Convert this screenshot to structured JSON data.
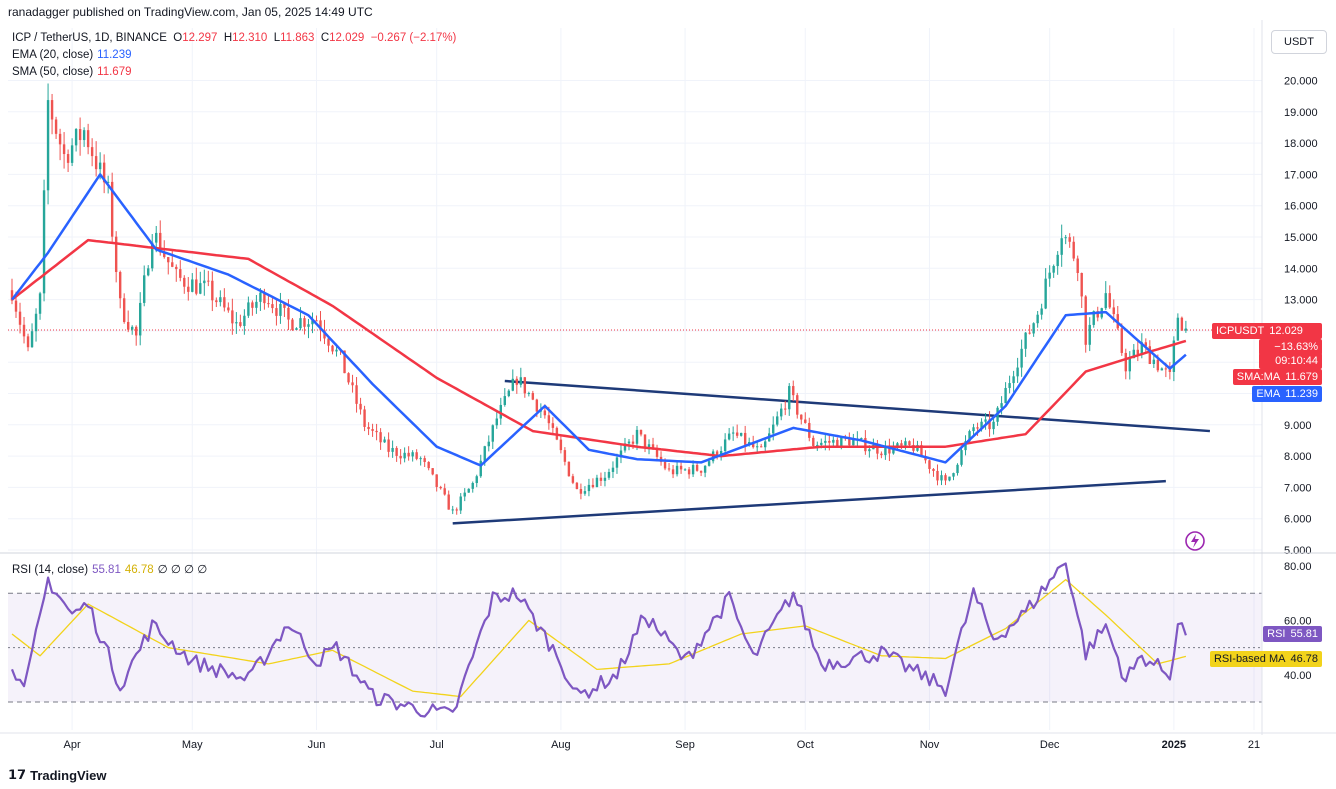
{
  "header": {
    "published": "ranadagger published on TradingView.com, Jan 05, 2025 14:49 UTC"
  },
  "legend": {
    "symbol": "ICP / TetherUS, 1D, BINANCE",
    "open_label": "O",
    "open": "12.297",
    "high_label": "H",
    "high": "12.310",
    "low_label": "L",
    "low": "11.863",
    "close_label": "C",
    "close": "12.029",
    "change": "−0.267 (−2.17%)",
    "ema_label": "EMA (20, close)",
    "ema_value": "11.239",
    "sma_label": "SMA (50, close)",
    "sma_value": "11.679",
    "rsi_label": "RSI (14, close)",
    "rsi_value": "55.81",
    "rsi_ma_value": "46.78",
    "rsi_extra": "∅ ∅ ∅ ∅"
  },
  "unit_button": "USDT",
  "price_tags": {
    "symbol": "ICPUSDT",
    "price": "12.029",
    "change_pct": "−13.63%",
    "countdown": "09:10:44",
    "sma_label": "SMA:MA",
    "sma": "11.679",
    "ema_label": "EMA",
    "ema": "11.239",
    "rsi_label": "RSI",
    "rsi": "55.81",
    "rsi_ma_label": "RSI-based MA",
    "rsi_ma": "46.78"
  },
  "footer": {
    "brand": "TradingView"
  },
  "colors": {
    "up": "#26a69a",
    "down": "#ef5350",
    "ema": "#2962ff",
    "sma": "#f23645",
    "trendline": "#1e3a78",
    "rsi": "#7e57c2",
    "rsi_ma": "#f2d31b",
    "rsi_band": "#7e57c2"
  },
  "chart_data": [
    {
      "type": "candlestick",
      "title": "ICP / TetherUS, 1D, BINANCE",
      "x_tick_labels": [
        "Apr",
        "May",
        "Jun",
        "Jul",
        "Aug",
        "Sep",
        "Oct",
        "Nov",
        "Dec",
        "2025",
        "21"
      ],
      "y_tick_labels": [
        "5.000",
        "6.000",
        "7.000",
        "8.000",
        "9.000",
        "10.000",
        "11.000",
        "12.000",
        "13.000",
        "14.000",
        "15.000",
        "16.000",
        "17.000",
        "18.000",
        "19.000",
        "20.000"
      ],
      "ylim": [
        5,
        21
      ],
      "grid": true,
      "close_key_points": [
        {
          "x": "2024-03-17",
          "y": 13.3
        },
        {
          "x": "2024-03-21",
          "y": 11.3
        },
        {
          "x": "2024-03-24",
          "y": 13.0
        },
        {
          "x": "2024-03-26",
          "y": 19.3
        },
        {
          "x": "2024-03-30",
          "y": 17.6
        },
        {
          "x": "2024-04-04",
          "y": 18.4
        },
        {
          "x": "2024-04-10",
          "y": 16.4
        },
        {
          "x": "2024-04-13",
          "y": 12.8
        },
        {
          "x": "2024-04-17",
          "y": 11.8
        },
        {
          "x": "2024-04-21",
          "y": 15.2
        },
        {
          "x": "2024-04-27",
          "y": 13.7
        },
        {
          "x": "2024-05-05",
          "y": 13.3
        },
        {
          "x": "2024-05-12",
          "y": 12.2
        },
        {
          "x": "2024-05-19",
          "y": 13.2
        },
        {
          "x": "2024-05-25",
          "y": 12.3
        },
        {
          "x": "2024-06-01",
          "y": 12.4
        },
        {
          "x": "2024-06-07",
          "y": 11.1
        },
        {
          "x": "2024-06-13",
          "y": 9.0
        },
        {
          "x": "2024-06-19",
          "y": 8.2
        },
        {
          "x": "2024-06-27",
          "y": 7.9
        },
        {
          "x": "2024-07-05",
          "y": 6.2
        },
        {
          "x": "2024-07-10",
          "y": 7.1
        },
        {
          "x": "2024-07-16",
          "y": 9.2
        },
        {
          "x": "2024-07-21",
          "y": 10.5
        },
        {
          "x": "2024-07-28",
          "y": 9.3
        },
        {
          "x": "2024-08-05",
          "y": 6.9
        },
        {
          "x": "2024-08-12",
          "y": 7.4
        },
        {
          "x": "2024-08-20",
          "y": 8.7
        },
        {
          "x": "2024-08-28",
          "y": 7.5
        },
        {
          "x": "2024-09-05",
          "y": 7.6
        },
        {
          "x": "2024-09-13",
          "y": 8.7
        },
        {
          "x": "2024-09-20",
          "y": 8.1
        },
        {
          "x": "2024-09-27",
          "y": 10.0
        },
        {
          "x": "2024-10-03",
          "y": 8.4
        },
        {
          "x": "2024-10-12",
          "y": 8.5
        },
        {
          "x": "2024-10-20",
          "y": 8.2
        },
        {
          "x": "2024-10-28",
          "y": 8.3
        },
        {
          "x": "2024-11-05",
          "y": 7.1
        },
        {
          "x": "2024-11-12",
          "y": 8.9
        },
        {
          "x": "2024-11-17",
          "y": 9.0
        },
        {
          "x": "2024-11-22",
          "y": 10.8
        },
        {
          "x": "2024-11-28",
          "y": 12.6
        },
        {
          "x": "2024-12-04",
          "y": 15.2
        },
        {
          "x": "2024-12-08",
          "y": 14.2
        },
        {
          "x": "2024-12-10",
          "y": 11.8
        },
        {
          "x": "2024-12-15",
          "y": 13.2
        },
        {
          "x": "2024-12-20",
          "y": 10.9
        },
        {
          "x": "2024-12-24",
          "y": 11.5
        },
        {
          "x": "2024-12-31",
          "y": 10.5
        },
        {
          "x": "2025-01-02",
          "y": 12.5
        },
        {
          "x": "2025-01-04",
          "y": 12.03
        }
      ],
      "ema_key_points": [
        {
          "x": "2024-03-17",
          "y": 13.0
        },
        {
          "x": "2024-03-26",
          "y": 14.5
        },
        {
          "x": "2024-04-08",
          "y": 17.0
        },
        {
          "x": "2024-04-22",
          "y": 14.6
        },
        {
          "x": "2024-05-10",
          "y": 13.8
        },
        {
          "x": "2024-05-30",
          "y": 12.5
        },
        {
          "x": "2024-06-15",
          "y": 10.3
        },
        {
          "x": "2024-07-01",
          "y": 8.3
        },
        {
          "x": "2024-07-12",
          "y": 7.7
        },
        {
          "x": "2024-07-28",
          "y": 9.6
        },
        {
          "x": "2024-08-08",
          "y": 8.2
        },
        {
          "x": "2024-08-20",
          "y": 7.9
        },
        {
          "x": "2024-09-05",
          "y": 7.8
        },
        {
          "x": "2024-09-28",
          "y": 8.9
        },
        {
          "x": "2024-10-15",
          "y": 8.5
        },
        {
          "x": "2024-11-05",
          "y": 7.8
        },
        {
          "x": "2024-11-20",
          "y": 9.6
        },
        {
          "x": "2024-12-05",
          "y": 12.5
        },
        {
          "x": "2024-12-15",
          "y": 12.6
        },
        {
          "x": "2024-12-31",
          "y": 10.8
        },
        {
          "x": "2025-01-04",
          "y": 11.239
        }
      ],
      "sma_key_points": [
        {
          "x": "2024-03-17",
          "y": 13.0
        },
        {
          "x": "2024-04-05",
          "y": 14.9
        },
        {
          "x": "2024-05-15",
          "y": 14.3
        },
        {
          "x": "2024-06-05",
          "y": 12.8
        },
        {
          "x": "2024-07-01",
          "y": 10.5
        },
        {
          "x": "2024-07-25",
          "y": 8.8
        },
        {
          "x": "2024-08-20",
          "y": 8.3
        },
        {
          "x": "2024-09-10",
          "y": 8.0
        },
        {
          "x": "2024-10-05",
          "y": 8.3
        },
        {
          "x": "2024-11-05",
          "y": 8.3
        },
        {
          "x": "2024-11-25",
          "y": 8.7
        },
        {
          "x": "2024-12-10",
          "y": 10.7
        },
        {
          "x": "2024-12-25",
          "y": 11.3
        },
        {
          "x": "2025-01-04",
          "y": 11.679
        }
      ],
      "trendlines": [
        {
          "name": "upper",
          "points": [
            {
              "x": "2024-07-18",
              "y": 10.4
            },
            {
              "x": "2025-01-10",
              "y": 8.8
            }
          ]
        },
        {
          "name": "lower",
          "points": [
            {
              "x": "2024-07-05",
              "y": 5.85
            },
            {
              "x": "2024-12-30",
              "y": 7.2
            }
          ]
        }
      ],
      "last_price": 12.029
    },
    {
      "type": "line",
      "title": "RSI (14, close)",
      "y_tick_labels": [
        "40.00",
        "60.00",
        "80.00"
      ],
      "ylim": [
        23,
        83
      ],
      "bands": [
        30,
        50,
        70
      ],
      "series": [
        {
          "name": "RSI",
          "key_points": [
            {
              "x": "2024-03-17",
              "y": 45
            },
            {
              "x": "2024-03-20",
              "y": 33
            },
            {
              "x": "2024-03-26",
              "y": 75
            },
            {
              "x": "2024-04-01",
              "y": 62
            },
            {
              "x": "2024-04-05",
              "y": 66
            },
            {
              "x": "2024-04-13",
              "y": 36
            },
            {
              "x": "2024-04-21",
              "y": 58
            },
            {
              "x": "2024-05-01",
              "y": 45
            },
            {
              "x": "2024-05-15",
              "y": 38
            },
            {
              "x": "2024-05-25",
              "y": 59
            },
            {
              "x": "2024-06-01",
              "y": 45
            },
            {
              "x": "2024-06-06",
              "y": 50
            },
            {
              "x": "2024-06-15",
              "y": 32
            },
            {
              "x": "2024-06-25",
              "y": 28
            },
            {
              "x": "2024-07-05",
              "y": 25
            },
            {
              "x": "2024-07-15",
              "y": 68
            },
            {
              "x": "2024-07-21",
              "y": 70
            },
            {
              "x": "2024-08-01",
              "y": 45
            },
            {
              "x": "2024-08-05",
              "y": 32
            },
            {
              "x": "2024-08-15",
              "y": 40
            },
            {
              "x": "2024-08-22",
              "y": 62
            },
            {
              "x": "2024-09-01",
              "y": 45
            },
            {
              "x": "2024-09-12",
              "y": 68
            },
            {
              "x": "2024-09-18",
              "y": 46
            },
            {
              "x": "2024-09-28",
              "y": 70
            },
            {
              "x": "2024-10-05",
              "y": 44
            },
            {
              "x": "2024-10-20",
              "y": 48
            },
            {
              "x": "2024-11-05",
              "y": 35
            },
            {
              "x": "2024-11-12",
              "y": 70
            },
            {
              "x": "2024-11-17",
              "y": 53
            },
            {
              "x": "2024-11-25",
              "y": 63
            },
            {
              "x": "2024-12-05",
              "y": 82
            },
            {
              "x": "2024-12-10",
              "y": 48
            },
            {
              "x": "2024-12-15",
              "y": 58
            },
            {
              "x": "2024-12-20",
              "y": 38
            },
            {
              "x": "2024-12-24",
              "y": 47
            },
            {
              "x": "2024-12-31",
              "y": 40
            },
            {
              "x": "2025-01-02",
              "y": 59
            },
            {
              "x": "2025-01-04",
              "y": 55.81
            }
          ]
        },
        {
          "name": "RSI-based MA",
          "key_points": [
            {
              "x": "2024-03-17",
              "y": 55
            },
            {
              "x": "2024-03-24",
              "y": 47
            },
            {
              "x": "2024-04-05",
              "y": 66
            },
            {
              "x": "2024-04-25",
              "y": 50
            },
            {
              "x": "2024-05-20",
              "y": 44
            },
            {
              "x": "2024-06-05",
              "y": 49
            },
            {
              "x": "2024-06-25",
              "y": 34
            },
            {
              "x": "2024-07-07",
              "y": 32
            },
            {
              "x": "2024-07-24",
              "y": 60
            },
            {
              "x": "2024-08-10",
              "y": 42
            },
            {
              "x": "2024-08-28",
              "y": 44
            },
            {
              "x": "2024-09-15",
              "y": 55
            },
            {
              "x": "2024-10-01",
              "y": 58
            },
            {
              "x": "2024-10-20",
              "y": 47
            },
            {
              "x": "2024-11-05",
              "y": 46
            },
            {
              "x": "2024-11-20",
              "y": 57
            },
            {
              "x": "2024-12-05",
              "y": 75
            },
            {
              "x": "2024-12-15",
              "y": 62
            },
            {
              "x": "2024-12-28",
              "y": 44
            },
            {
              "x": "2025-01-04",
              "y": 46.78
            }
          ]
        }
      ]
    }
  ]
}
